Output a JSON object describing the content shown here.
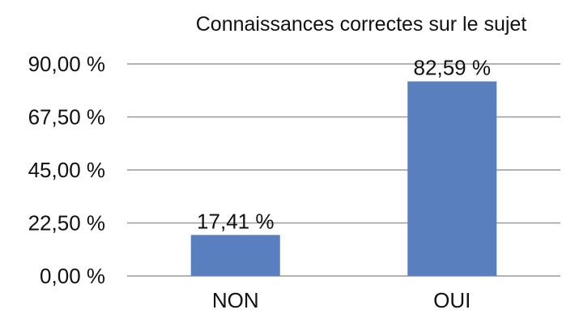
{
  "chart_data": {
    "type": "bar",
    "title": "Connaissances correctes sur le sujet",
    "xlabel": "",
    "ylabel": "",
    "categories": [
      "NON",
      "OUI"
    ],
    "values": [
      17.41,
      82.59
    ],
    "value_labels": [
      "17,41 %",
      "82,59 %"
    ],
    "ylim": [
      0,
      90
    ],
    "yticks": [
      0,
      22.5,
      45,
      67.5,
      90
    ],
    "ytick_labels": [
      "0,00 %",
      "22,50 %",
      "45,00 %",
      "67,50 %",
      "90,00 %"
    ],
    "grid": true,
    "legend": "none",
    "bar_color": "#5a7fbf"
  }
}
